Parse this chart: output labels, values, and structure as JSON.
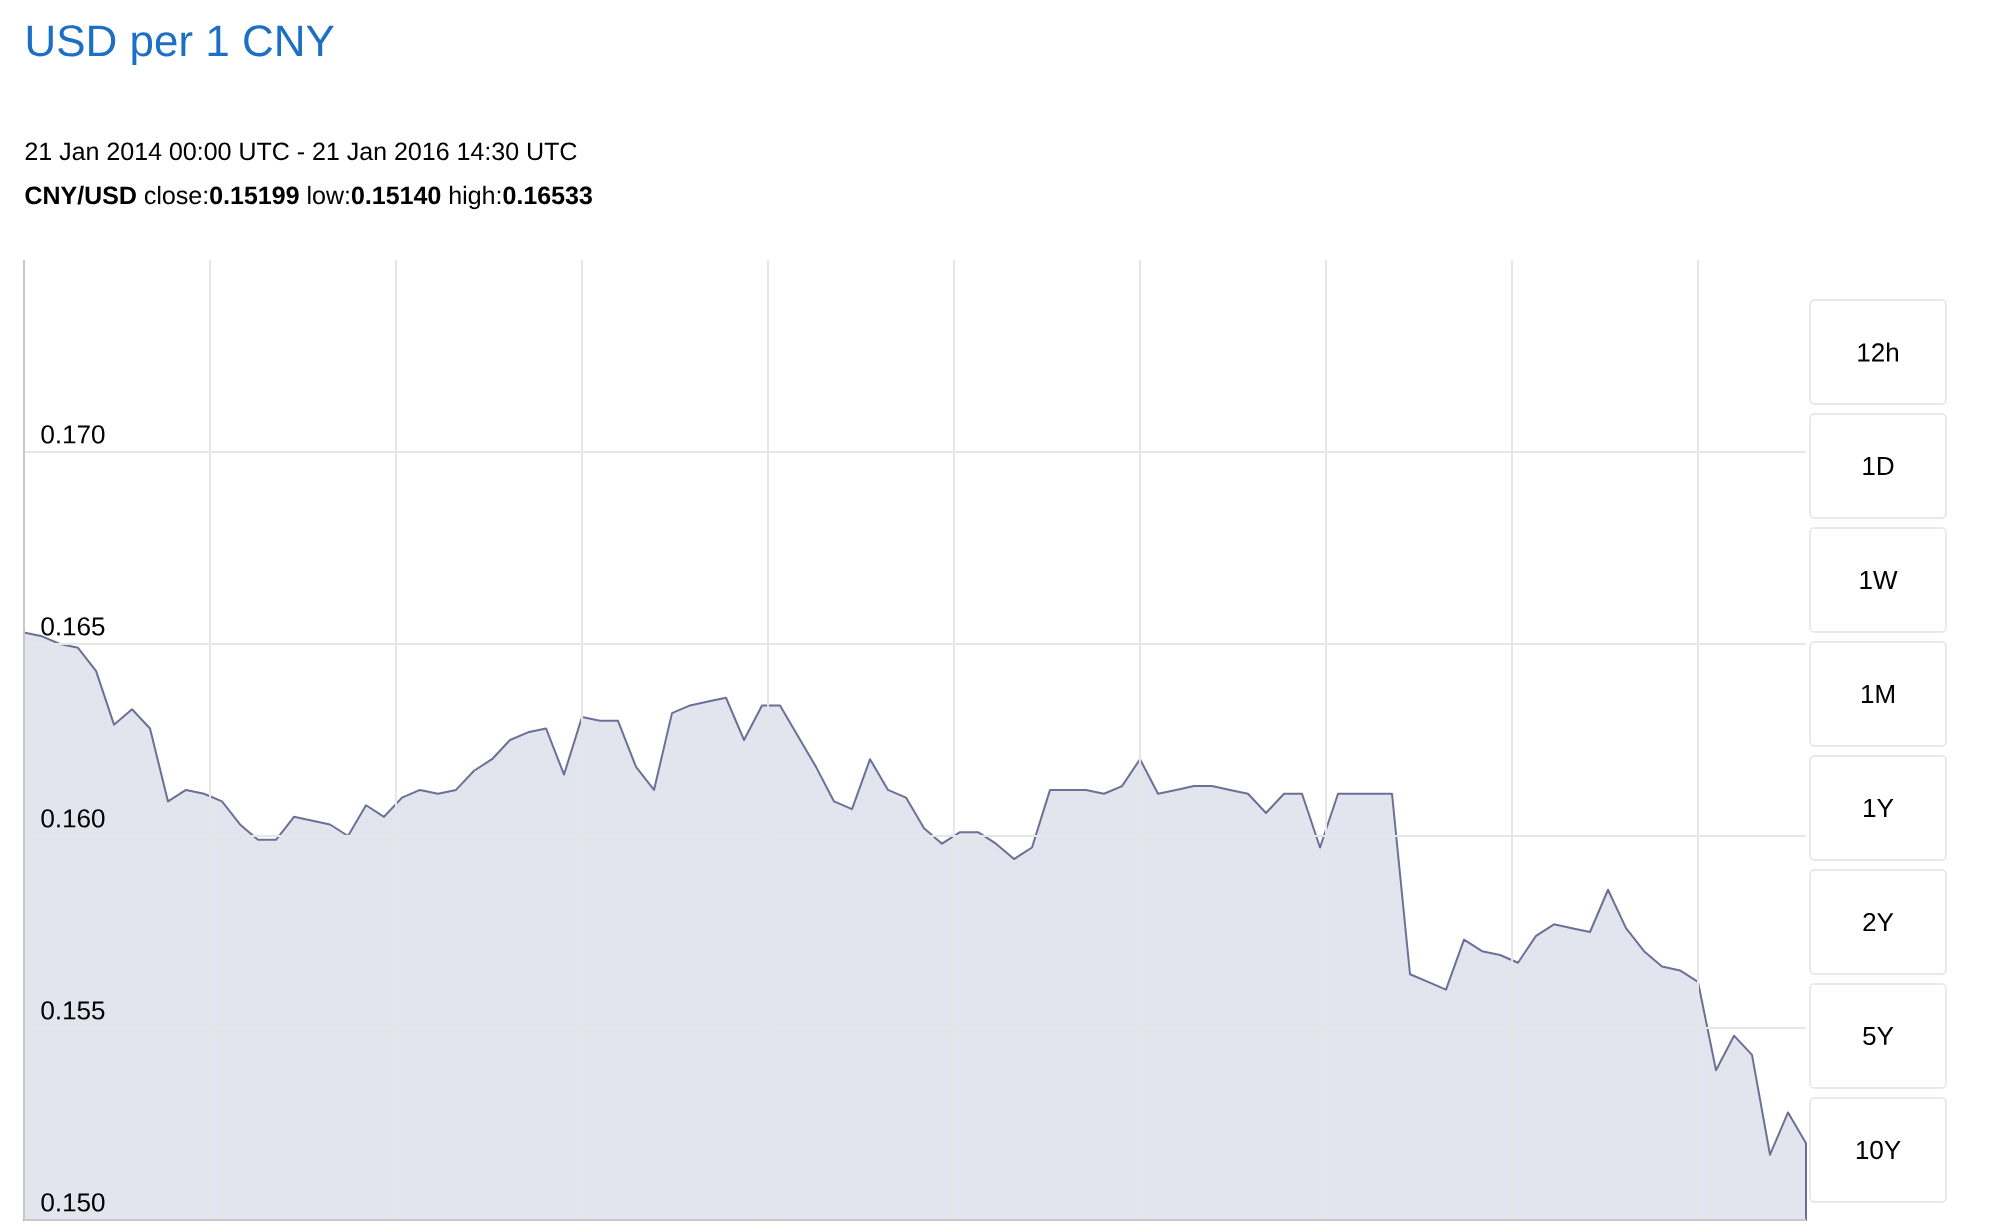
{
  "chart_data": {
    "type": "area",
    "title": "USD per 1 CNY",
    "subtitle": "21 Jan 2014 00:00 UTC - 21 Jan 2016 14:30 UTC",
    "annotations": [
      "**CNY/USD** close:**0.15199** low:**0.15140** high:**0.16533**",
      "12h",
      "1D",
      "1W",
      "1M",
      "1Y",
      "2Y",
      "5Y",
      "10Y"
    ],
    "categories": [
      null,
      null,
      null,
      null,
      null,
      null,
      null,
      null,
      null,
      null,
      null,
      null,
      null,
      null,
      null,
      null,
      null,
      null,
      null,
      null,
      null,
      null,
      null,
      null,
      null,
      null,
      null,
      null,
      null,
      null,
      null,
      null,
      null,
      null,
      null,
      null,
      null,
      null,
      null,
      null,
      null,
      null,
      null,
      null,
      null,
      null,
      null,
      null,
      null,
      null,
      null,
      null,
      null,
      null,
      null,
      null,
      null,
      null,
      null,
      null,
      null,
      null,
      null,
      null,
      null,
      null,
      null,
      null,
      null,
      null,
      null,
      null,
      null,
      null,
      null,
      null,
      null,
      null,
      null,
      null,
      null,
      null,
      null,
      null,
      null,
      null,
      null,
      null,
      null,
      null,
      null,
      null,
      null,
      null,
      null,
      null,
      null,
      null,
      null,
      null
    ],
    "values": [
      0.1653,
      0.1652,
      0.165,
      0.1649,
      0.1643,
      0.1629,
      0.1633,
      0.1628,
      0.1609,
      0.1612,
      0.1611,
      0.1609,
      0.1603,
      0.1599,
      0.1599,
      0.1605,
      0.1604,
      0.1603,
      0.16,
      0.1608,
      0.1605,
      0.161,
      0.1612,
      0.1611,
      0.1612,
      0.1617,
      0.162,
      0.1625,
      0.1627,
      0.1628,
      0.1616,
      0.1631,
      0.163,
      0.163,
      0.1618,
      0.1612,
      0.1632,
      0.1634,
      0.1635,
      0.1636,
      0.1625,
      0.1634,
      0.1634,
      0.1626,
      0.1618,
      0.1609,
      0.1607,
      0.162,
      0.1612,
      0.161,
      0.1602,
      0.1598,
      0.1601,
      0.1601,
      0.1598,
      0.1594,
      0.1597,
      0.1612,
      0.1612,
      0.1612,
      0.1611,
      0.1613,
      0.162,
      0.1611,
      0.1612,
      0.1613,
      0.1613,
      0.1612,
      0.1611,
      0.1606,
      0.1611,
      0.1611,
      0.1597,
      0.1611,
      0.1611,
      0.1611,
      0.1611,
      0.1564,
      0.1562,
      0.156,
      0.1573,
      0.157,
      0.1569,
      0.1567,
      0.1574,
      0.1577,
      0.1576,
      0.1575,
      0.1586,
      0.1576,
      0.157,
      0.1566,
      0.1565,
      0.1562,
      0.1539,
      0.1548,
      0.1543,
      0.1517,
      0.1528,
      0.152
    ],
    "color": "#6b7096",
    "ylim": [
      0.15,
      0.175
    ],
    "yticks": [
      {
        "value": 0.15,
        "label": "0.150"
      },
      {
        "value": 0.155,
        "label": "0.155"
      },
      {
        "value": 0.16,
        "label": "0.160"
      },
      {
        "value": 0.165,
        "label": "0.165"
      },
      {
        "value": 0.17,
        "label": "0.170"
      }
    ],
    "grid": true
  }
}
